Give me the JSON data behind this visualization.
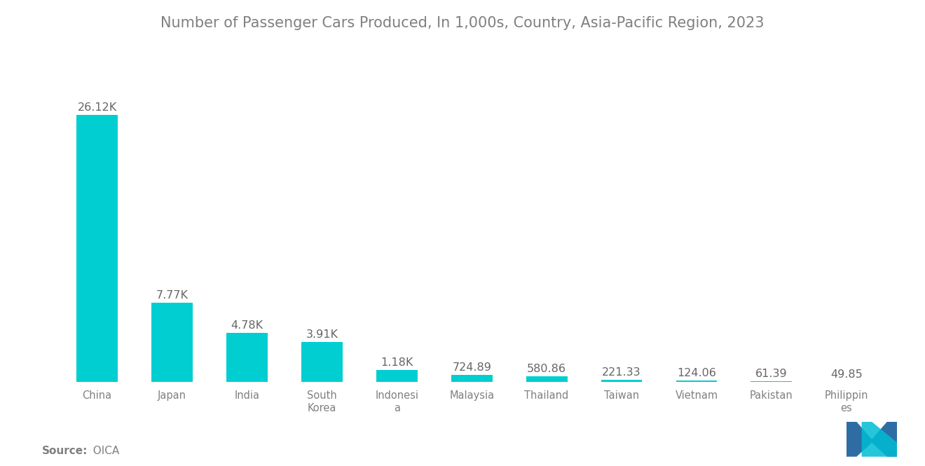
{
  "title": "Number of Passenger Cars Produced, In 1,000s, Country, Asia-Pacific Region, 2023",
  "categories": [
    "China",
    "Japan",
    "India",
    "South\nKorea",
    "Indonesi\na",
    "Malaysia",
    "Thailand",
    "Taiwan",
    "Vietnam",
    "Pakistan",
    "Philippin\nes"
  ],
  "values": [
    26120,
    7770,
    4780,
    3910,
    1180,
    724.89,
    580.86,
    221.33,
    124.06,
    61.39,
    49.85
  ],
  "labels": [
    "26.12K",
    "7.77K",
    "4.78K",
    "3.91K",
    "1.18K",
    "724.89",
    "580.86",
    "221.33",
    "124.06",
    "61.39",
    "49.85"
  ],
  "bar_color": "#00CED1",
  "title_color": "#808080",
  "label_color": "#666666",
  "tick_color": "#808080",
  "source_bold": "Source:",
  "source_normal": "  OICA",
  "source_color": "#808080",
  "background_color": "#ffffff",
  "title_fontsize": 15,
  "label_fontsize": 11.5,
  "tick_fontsize": 10.5,
  "source_fontsize": 11,
  "logo_color1": "#2E6DA4",
  "logo_color2": "#00BCD4"
}
